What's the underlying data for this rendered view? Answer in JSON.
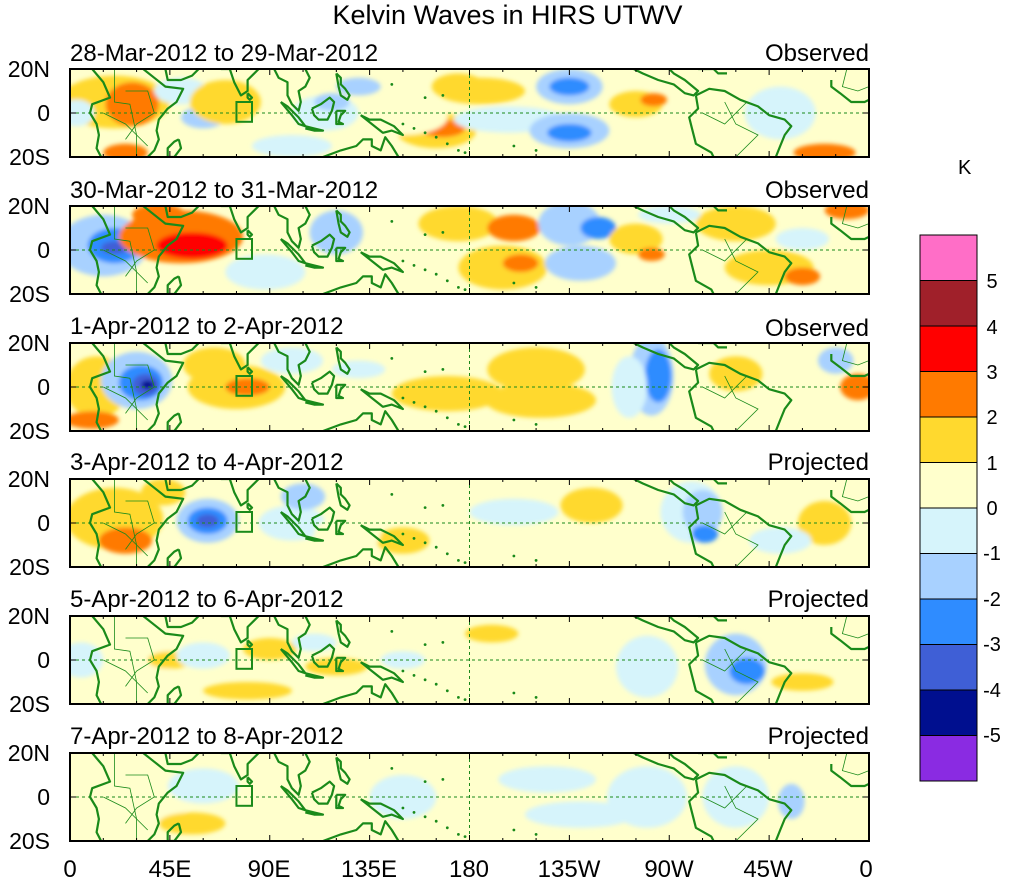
{
  "title": "Kelvin Waves in HIRS UTWV",
  "colorbar": {
    "unit": "K",
    "ticks": [
      "5",
      "4",
      "3",
      "2",
      "1",
      "0",
      "-1",
      "-2",
      "-3",
      "-4",
      "-5"
    ],
    "colors": [
      "#ff6ec7",
      "#a0202a",
      "#ff0000",
      "#ff7a00",
      "#ffd92e",
      "#ffffcc",
      "#d6f4fb",
      "#a8d1ff",
      "#2f8cff",
      "#3f5fd6",
      "#000f8f",
      "#8a2be2"
    ]
  },
  "panels": [
    {
      "date_range": "28-Mar-2012 to 29-Mar-2012",
      "status": "Observed"
    },
    {
      "date_range": "30-Mar-2012 to 31-Mar-2012",
      "status": "Observed"
    },
    {
      "date_range": "1-Apr-2012 to 2-Apr-2012",
      "status": "Observed"
    },
    {
      "date_range": "3-Apr-2012 to 4-Apr-2012",
      "status": "Projected"
    },
    {
      "date_range": "5-Apr-2012 to 6-Apr-2012",
      "status": "Projected"
    },
    {
      "date_range": "7-Apr-2012 to 8-Apr-2012",
      "status": "Projected"
    }
  ],
  "lat_labels": [
    "20N",
    "0",
    "20S"
  ],
  "lon_labels": [
    "0",
    "45E",
    "90E",
    "135E",
    "180",
    "135W",
    "90W",
    "45W",
    "0"
  ]
}
